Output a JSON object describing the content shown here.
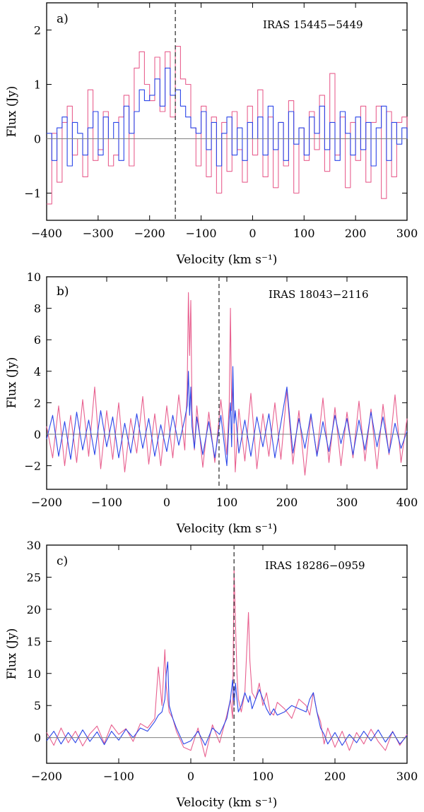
{
  "chart_data": [
    {
      "type": "line",
      "panel_label": "a)",
      "object": "IRAS 15445−5449",
      "xlabel": "Velocity (km s⁻¹)",
      "ylabel": "Flux (Jy)",
      "xlim": [
        -400,
        300
      ],
      "ylim": [
        -1.5,
        2.5
      ],
      "xticks": [
        -400,
        -300,
        -200,
        -100,
        0,
        100,
        200,
        300
      ],
      "xtick_labels": [
        "−400",
        "−300",
        "−200",
        "−100",
        "0",
        "100",
        "200",
        "300"
      ],
      "yticks": [
        -1,
        0,
        1,
        2
      ],
      "ytick_labels": [
        "−1",
        "0",
        "1",
        "2"
      ],
      "marker_velocity": -150,
      "series": [
        {
          "color": "#e8608f",
          "step": true,
          "x": [
            -400,
            -390,
            -380,
            -370,
            -360,
            -350,
            -340,
            -330,
            -320,
            -310,
            -300,
            -290,
            -280,
            -270,
            -260,
            -250,
            -240,
            -230,
            -220,
            -210,
            -200,
            -190,
            -180,
            -170,
            -160,
            -150,
            -140,
            -130,
            -120,
            -110,
            -100,
            -90,
            -80,
            -70,
            -60,
            -50,
            -40,
            -30,
            -20,
            -10,
            0,
            10,
            20,
            30,
            40,
            50,
            60,
            70,
            80,
            90,
            100,
            110,
            120,
            130,
            140,
            150,
            160,
            170,
            180,
            190,
            200,
            210,
            220,
            230,
            240,
            250,
            260,
            270,
            280,
            290,
            300
          ],
          "y": [
            -1.2,
            0.1,
            -0.8,
            0.3,
            0.6,
            -0.3,
            0.0,
            -0.7,
            0.9,
            -0.4,
            -0.2,
            0.5,
            -0.5,
            -0.3,
            0.4,
            0.8,
            -0.5,
            1.3,
            1.6,
            1.0,
            0.7,
            1.5,
            0.5,
            1.6,
            0.4,
            1.7,
            1.1,
            1.0,
            0.2,
            -0.5,
            0.6,
            -0.7,
            0.4,
            -1.0,
            0.3,
            -0.6,
            0.5,
            -0.2,
            -0.8,
            0.6,
            -0.3,
            0.9,
            -0.7,
            0.4,
            -0.9,
            0.3,
            -0.5,
            0.7,
            -1.0,
            0.2,
            -0.4,
            0.5,
            -0.2,
            0.8,
            -0.6,
            1.2,
            -0.3,
            0.4,
            -0.9,
            0.3,
            -0.4,
            0.6,
            -0.8,
            0.3,
            0.6,
            -1.1,
            0.5,
            -0.7,
            0.3,
            0.4,
            0.1
          ]
        },
        {
          "color": "#2a45e8",
          "step": true,
          "x": [
            -400,
            -390,
            -380,
            -370,
            -360,
            -350,
            -340,
            -330,
            -320,
            -310,
            -300,
            -290,
            -280,
            -270,
            -260,
            -250,
            -240,
            -230,
            -220,
            -210,
            -200,
            -190,
            -180,
            -170,
            -160,
            -150,
            -140,
            -130,
            -120,
            -110,
            -100,
            -90,
            -80,
            -70,
            -60,
            -50,
            -40,
            -30,
            -20,
            -10,
            0,
            10,
            20,
            30,
            40,
            50,
            60,
            70,
            80,
            90,
            100,
            110,
            120,
            130,
            140,
            150,
            160,
            170,
            180,
            190,
            200,
            210,
            220,
            230,
            240,
            250,
            260,
            270,
            280,
            290,
            300
          ],
          "y": [
            0.1,
            -0.4,
            0.2,
            0.4,
            -0.5,
            0.3,
            0.1,
            -0.3,
            0.2,
            0.5,
            -0.3,
            0.4,
            0.0,
            0.3,
            -0.4,
            0.6,
            0.1,
            0.5,
            0.9,
            0.7,
            0.8,
            1.1,
            0.6,
            1.3,
            0.8,
            0.9,
            0.6,
            0.4,
            0.2,
            0.1,
            0.5,
            -0.2,
            0.3,
            -0.5,
            0.1,
            0.4,
            -0.3,
            0.2,
            -0.4,
            0.3,
            0.0,
            0.4,
            -0.3,
            0.6,
            -0.2,
            0.3,
            -0.4,
            0.5,
            -0.1,
            0.2,
            -0.3,
            0.4,
            0.1,
            0.6,
            -0.2,
            0.3,
            -0.4,
            0.5,
            0.1,
            -0.3,
            0.4,
            -0.2,
            0.3,
            -0.5,
            0.2,
            0.6,
            -0.4,
            0.3,
            -0.1,
            0.2,
            0.0
          ]
        }
      ]
    },
    {
      "type": "line",
      "panel_label": "b)",
      "object": "IRAS 18043−2116",
      "xlabel": "Velocity (km s⁻¹)",
      "ylabel": "Flux (Jy)",
      "xlim": [
        -200,
        400
      ],
      "ylim": [
        -3.5,
        10
      ],
      "xticks": [
        -200,
        -100,
        0,
        100,
        200,
        300,
        400
      ],
      "xtick_labels": [
        "−200",
        "−100",
        "0",
        "100",
        "200",
        "300",
        "400"
      ],
      "yticks": [
        -2,
        0,
        2,
        4,
        6,
        8,
        10
      ],
      "ytick_labels": [
        "−2",
        "0",
        "2",
        "4",
        "6",
        "8",
        "10"
      ],
      "marker_velocity": 87,
      "series": [
        {
          "color": "#e8608f",
          "step": false,
          "x": [
            -200,
            -190,
            -180,
            -170,
            -160,
            -150,
            -140,
            -130,
            -120,
            -110,
            -100,
            -90,
            -80,
            -70,
            -60,
            -50,
            -40,
            -30,
            -20,
            -10,
            0,
            10,
            20,
            30,
            34,
            36,
            38,
            40,
            42,
            46,
            50,
            60,
            70,
            80,
            90,
            100,
            104,
            106,
            108,
            110,
            114,
            120,
            130,
            140,
            150,
            160,
            170,
            180,
            190,
            200,
            210,
            220,
            230,
            240,
            250,
            260,
            270,
            280,
            290,
            300,
            310,
            320,
            330,
            340,
            350,
            360,
            370,
            380,
            390,
            400
          ],
          "y": [
            0.5,
            -1.5,
            1.8,
            -2.0,
            1.2,
            -1.8,
            2.2,
            -1.4,
            3.0,
            -2.2,
            1.5,
            -1.6,
            2.0,
            -2.4,
            1.0,
            -1.2,
            2.4,
            -1.9,
            1.3,
            -2.0,
            1.8,
            -1.5,
            2.5,
            -1.0,
            3.0,
            9.0,
            5.0,
            8.5,
            1.5,
            -1.0,
            1.8,
            -2.1,
            1.4,
            -1.8,
            2.2,
            -1.3,
            2.0,
            8.0,
            1.5,
            3.5,
            -2.4,
            1.6,
            -1.7,
            2.6,
            -2.2,
            1.3,
            -1.4,
            2.0,
            -1.6,
            2.8,
            -1.9,
            1.5,
            -2.6,
            1.2,
            -1.3,
            2.3,
            -1.8,
            1.7,
            -2.0,
            1.4,
            -1.5,
            2.1,
            -1.7,
            1.6,
            -2.2,
            1.9,
            -1.3,
            2.5,
            -1.8,
            1.0
          ]
        },
        {
          "color": "#2a45e8",
          "step": false,
          "x": [
            -200,
            -190,
            -180,
            -170,
            -160,
            -150,
            -140,
            -130,
            -120,
            -110,
            -100,
            -90,
            -80,
            -70,
            -60,
            -50,
            -40,
            -30,
            -20,
            -10,
            0,
            10,
            20,
            30,
            34,
            36,
            38,
            40,
            42,
            46,
            50,
            60,
            70,
            80,
            90,
            100,
            104,
            106,
            108,
            110,
            112,
            114,
            120,
            130,
            140,
            150,
            160,
            170,
            180,
            190,
            200,
            210,
            220,
            230,
            240,
            250,
            260,
            270,
            280,
            290,
            300,
            310,
            320,
            330,
            340,
            350,
            360,
            370,
            380,
            390,
            400
          ],
          "y": [
            -0.3,
            1.2,
            -1.4,
            0.8,
            -1.6,
            1.4,
            -1.0,
            0.9,
            -1.3,
            1.5,
            -0.8,
            1.1,
            -1.5,
            0.7,
            -1.2,
            1.3,
            -0.9,
            1.0,
            -1.4,
            0.6,
            -1.1,
            1.2,
            -0.7,
            1.0,
            1.8,
            4.0,
            1.2,
            3.0,
            0.5,
            -0.9,
            1.1,
            -1.3,
            0.8,
            -1.5,
            1.2,
            -2.0,
            1.0,
            2.0,
            -0.8,
            4.3,
            0.7,
            1.5,
            -1.2,
            0.9,
            -1.4,
            1.1,
            -0.8,
            1.3,
            -1.5,
            0.7,
            3.0,
            -1.2,
            1.0,
            -0.9,
            1.3,
            -1.4,
            0.8,
            -1.1,
            1.2,
            -0.6,
            1.0,
            -1.3,
            0.9,
            -1.0,
            1.4,
            -0.8,
            1.1,
            -1.2,
            0.7,
            -0.9,
            0.2
          ]
        }
      ]
    },
    {
      "type": "line",
      "panel_label": "c)",
      "object": "IRAS 18286−0959",
      "xlabel": "Velocity (km s⁻¹)",
      "ylabel": "Flux (Jy)",
      "xlim": [
        -200,
        300
      ],
      "ylim": [
        -4,
        30
      ],
      "xticks": [
        -200,
        -100,
        0,
        100,
        200,
        300
      ],
      "xtick_labels": [
        "−200",
        "−100",
        "0",
        "100",
        "200",
        "300"
      ],
      "yticks": [
        0,
        5,
        10,
        15,
        20,
        25,
        30
      ],
      "ytick_labels": [
        "0",
        "5",
        "10",
        "15",
        "20",
        "25",
        "30"
      ],
      "marker_velocity": 60,
      "series": [
        {
          "color": "#e8608f",
          "step": false,
          "x": [
            -200,
            -190,
            -180,
            -170,
            -160,
            -150,
            -140,
            -130,
            -120,
            -110,
            -100,
            -90,
            -80,
            -70,
            -60,
            -50,
            -45,
            -40,
            -36,
            -34,
            -30,
            -25,
            -20,
            -10,
            0,
            10,
            20,
            30,
            40,
            50,
            55,
            58,
            60,
            62,
            64,
            66,
            70,
            75,
            80,
            82,
            85,
            90,
            95,
            100,
            105,
            110,
            115,
            120,
            130,
            140,
            150,
            160,
            165,
            170,
            175,
            180,
            185,
            190,
            200,
            210,
            220,
            230,
            240,
            250,
            260,
            270,
            280,
            290,
            300
          ],
          "y": [
            0.8,
            -1.2,
            1.5,
            -0.8,
            1.0,
            -1.3,
            0.6,
            1.8,
            -0.9,
            2.0,
            0.5,
            1.4,
            -0.6,
            2.2,
            1.5,
            3.0,
            11.0,
            5.0,
            13.7,
            8.0,
            4.0,
            3.0,
            1.0,
            -1.5,
            -2.0,
            1.5,
            -3.0,
            2.0,
            -0.8,
            3.5,
            6.0,
            3.0,
            26.5,
            18.0,
            10.0,
            6.0,
            4.0,
            7.0,
            19.5,
            12.0,
            7.0,
            6.0,
            8.5,
            5.0,
            7.0,
            4.0,
            3.5,
            5.5,
            4.5,
            3.0,
            6.0,
            5.0,
            3.5,
            7.0,
            4.0,
            2.5,
            -1.0,
            1.5,
            -1.5,
            1.0,
            -2.0,
            0.8,
            -1.0,
            1.3,
            -0.6,
            -2.0,
            1.0,
            -1.2,
            0.5
          ]
        },
        {
          "color": "#2a45e8",
          "step": false,
          "x": [
            -200,
            -190,
            -180,
            -170,
            -160,
            -150,
            -140,
            -130,
            -120,
            -110,
            -100,
            -90,
            -80,
            -70,
            -60,
            -50,
            -45,
            -40,
            -36,
            -34,
            -32,
            -30,
            -25,
            -20,
            -10,
            0,
            10,
            20,
            30,
            40,
            50,
            55,
            58,
            60,
            62,
            64,
            66,
            70,
            75,
            80,
            82,
            85,
            90,
            95,
            100,
            105,
            110,
            115,
            120,
            130,
            140,
            150,
            160,
            165,
            170,
            175,
            180,
            185,
            190,
            200,
            210,
            220,
            230,
            240,
            250,
            260,
            270,
            280,
            290,
            300
          ],
          "y": [
            -0.5,
            1.0,
            -1.0,
            0.8,
            -0.8,
            1.2,
            -0.6,
            0.9,
            -1.1,
            1.0,
            -0.4,
            1.3,
            0.0,
            1.5,
            1.0,
            2.5,
            3.5,
            4.0,
            6.0,
            10.0,
            11.8,
            5.0,
            3.0,
            1.5,
            -1.0,
            -0.5,
            1.0,
            -1.2,
            1.5,
            0.5,
            3.0,
            6.0,
            9.0,
            5.0,
            8.5,
            6.0,
            4.0,
            5.0,
            7.0,
            5.5,
            6.5,
            4.5,
            6.0,
            7.5,
            6.0,
            4.5,
            3.5,
            4.5,
            3.5,
            4.0,
            5.0,
            4.5,
            4.0,
            6.0,
            7.0,
            4.0,
            1.5,
            0.5,
            -1.0,
            0.8,
            -1.2,
            0.5,
            -0.8,
            1.0,
            -0.5,
            1.2,
            -0.7,
            0.9,
            -1.0,
            0.3
          ]
        }
      ]
    }
  ]
}
